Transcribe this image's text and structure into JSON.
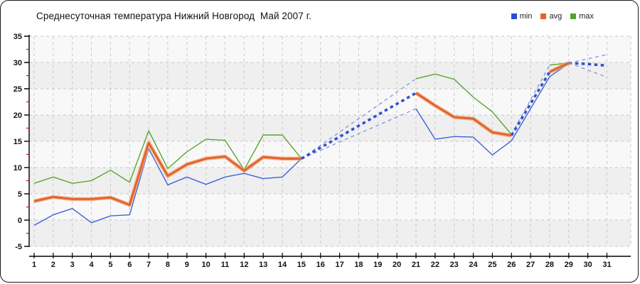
{
  "window": {
    "title": "Среднесуточная температура Нижний Новгород  Май 2007 г."
  },
  "legend": {
    "items": [
      {
        "label": "min",
        "color": "#2450cc"
      },
      {
        "label": "avg",
        "color": "#e2622a"
      },
      {
        "label": "max",
        "color": "#55a22c"
      }
    ]
  },
  "chart_data": {
    "type": "line",
    "title": "Среднесуточная температура Нижний Новгород  Май 2007 г.",
    "xlabel": "",
    "ylabel": "",
    "x": [
      1,
      2,
      3,
      4,
      5,
      6,
      7,
      8,
      9,
      10,
      11,
      12,
      13,
      14,
      15,
      16,
      17,
      18,
      19,
      20,
      21,
      22,
      23,
      24,
      25,
      26,
      27,
      28,
      29,
      30,
      31
    ],
    "ylim": [
      -5,
      35
    ],
    "yticks": [
      -5,
      0,
      5,
      10,
      15,
      20,
      25,
      30,
      35
    ],
    "yminor_step": 2.5,
    "grid": "dashed",
    "legend_position": "top-right",
    "series": [
      {
        "name": "max",
        "color": "#5aa52f",
        "width": 1.4,
        "runs": [
          [
            [
              1,
              7.0
            ],
            [
              2,
              8.2
            ],
            [
              3,
              7.0
            ],
            [
              4,
              7.5
            ],
            [
              5,
              9.5
            ],
            [
              6,
              7.2
            ],
            [
              7,
              17.0
            ],
            [
              8,
              9.8
            ],
            [
              9,
              13.0
            ],
            [
              10,
              15.4
            ],
            [
              11,
              15.2
            ],
            [
              12,
              9.6
            ],
            [
              13,
              16.2
            ],
            [
              14,
              16.2
            ],
            [
              15,
              11.7
            ]
          ],
          [
            [
              21,
              26.9
            ],
            [
              22,
              27.8
            ],
            [
              23,
              26.8
            ],
            [
              24,
              23.4
            ],
            [
              25,
              20.6
            ],
            [
              26,
              16.3
            ]
          ],
          [
            [
              28,
              29.5
            ],
            [
              29,
              29.9
            ]
          ]
        ]
      },
      {
        "name": "min",
        "color": "#3e63d6",
        "width": 1.4,
        "runs": [
          [
            [
              1,
              -1.0
            ],
            [
              2,
              1.0
            ],
            [
              3,
              2.2
            ],
            [
              4,
              -0.5
            ],
            [
              5,
              0.8
            ],
            [
              6,
              1.0
            ],
            [
              7,
              13.6
            ],
            [
              8,
              6.7
            ],
            [
              9,
              8.2
            ],
            [
              10,
              6.8
            ],
            [
              11,
              8.2
            ],
            [
              12,
              8.9
            ],
            [
              13,
              7.9
            ],
            [
              14,
              8.2
            ],
            [
              15,
              11.7
            ]
          ],
          [
            [
              21,
              21.2
            ],
            [
              22,
              15.4
            ],
            [
              23,
              15.9
            ],
            [
              24,
              15.8
            ],
            [
              25,
              12.4
            ],
            [
              26,
              15.1
            ],
            [
              28,
              27.3
            ],
            [
              29,
              29.8
            ]
          ]
        ]
      },
      {
        "name": "avg",
        "color": "#e2622a",
        "halo_color": "#f2a679",
        "width": 2.8,
        "runs": [
          [
            [
              1,
              3.6
            ],
            [
              2,
              4.4
            ],
            [
              3,
              4.0
            ],
            [
              4,
              4.0
            ],
            [
              5,
              4.3
            ],
            [
              6,
              2.9
            ],
            [
              7,
              14.7
            ],
            [
              8,
              8.4
            ],
            [
              9,
              10.6
            ],
            [
              10,
              11.7
            ],
            [
              11,
              12.1
            ],
            [
              12,
              9.4
            ],
            [
              13,
              12.0
            ],
            [
              14,
              11.7
            ],
            [
              15,
              11.7
            ]
          ],
          [
            [
              21,
              24.2
            ],
            [
              22,
              21.8
            ],
            [
              23,
              19.6
            ],
            [
              24,
              19.3
            ],
            [
              25,
              16.7
            ],
            [
              26,
              16.1
            ]
          ],
          [
            [
              28,
              28.2
            ],
            [
              29,
              29.9
            ]
          ]
        ]
      }
    ],
    "dashed_segments": [
      {
        "style": "thin",
        "points": [
          [
            15,
            11.7
          ],
          [
            21,
            26.9
          ]
        ]
      },
      {
        "style": "thin",
        "points": [
          [
            15,
            11.7
          ],
          [
            21,
            21.2
          ]
        ]
      },
      {
        "style": "thick",
        "points": [
          [
            15,
            11.7
          ],
          [
            21,
            24.2
          ]
        ]
      },
      {
        "style": "thin",
        "points": [
          [
            26,
            16.3
          ],
          [
            28,
            29.5
          ]
        ]
      },
      {
        "style": "thick",
        "points": [
          [
            26,
            16.1
          ],
          [
            28,
            28.2
          ]
        ]
      },
      {
        "style": "thick",
        "points": [
          [
            29,
            29.9
          ],
          [
            30,
            29.7
          ],
          [
            31,
            29.4
          ]
        ]
      },
      {
        "style": "thin",
        "points": [
          [
            29,
            29.9
          ],
          [
            31,
            31.5
          ]
        ]
      },
      {
        "style": "thin",
        "points": [
          [
            29,
            29.9
          ],
          [
            31,
            27.2
          ]
        ]
      }
    ],
    "colors": {
      "dashed_thick": "#3450cd",
      "dashed_thin": "#8193e0",
      "grid": "#c9c9c9",
      "axis": "#000000",
      "minor_tick": "#cc1111",
      "band_light": "#f8f8f8",
      "band_dark": "#efefef"
    }
  }
}
